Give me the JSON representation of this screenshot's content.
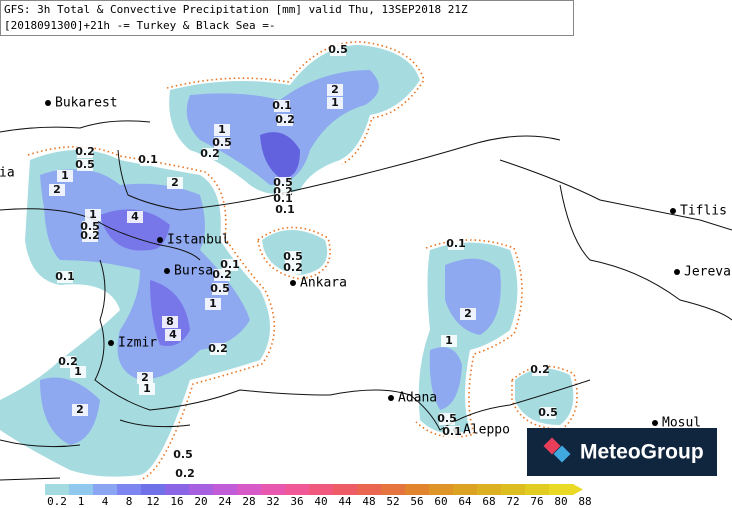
{
  "header": {
    "line1": "GFS: 3h Total & Convective Precipitation [mm] valid Thu, 13SEP2018 21Z",
    "line2": "[2018091300]+21h  -= Turkey & Black Sea =-"
  },
  "cities": [
    "Bukarest",
    "Istanbul",
    "Bursa",
    "Ankara",
    "Izmir",
    "Adana",
    "Aleppo",
    "Tiflis",
    "Jereva",
    "Mosul",
    "ia"
  ],
  "contour_labels": [
    "0.5",
    "2",
    "1",
    "0.1",
    "0.2",
    "1",
    "0.5",
    "0.2",
    "0.2",
    "0.5",
    "0.1",
    "1",
    "2",
    "2",
    "0.5",
    "0.2",
    "0.1",
    "0.1",
    "1",
    "4",
    "0.5",
    "0.2",
    "0.1",
    "0.2",
    "0.5",
    "1",
    "8",
    "4",
    "0.5",
    "0.2",
    "0.1",
    "2",
    "1",
    "0.1",
    "0.2",
    "0.2",
    "1",
    "2",
    "1",
    "2",
    "0.2",
    "0.5",
    "0.5",
    "0.1",
    "0.5",
    "0.2"
  ],
  "legend": {
    "labels": [
      "0.2",
      "1",
      "4",
      "8",
      "12",
      "16",
      "20",
      "24",
      "28",
      "32",
      "36",
      "40",
      "44",
      "48",
      "52",
      "56",
      "60",
      "64",
      "68",
      "72",
      "76",
      "80",
      "88"
    ],
    "colors": [
      "#a3dbe0",
      "#90c8ee",
      "#8aa6f2",
      "#7d86f0",
      "#7070e8",
      "#8a66e6",
      "#a660e0",
      "#c05cd8",
      "#d85ac8",
      "#e858b0",
      "#f05898",
      "#f0587e",
      "#ee5c66",
      "#ea6650",
      "#e6743e",
      "#e2842e",
      "#de9426",
      "#dca222",
      "#dcb020",
      "#dcbe20",
      "#e2cc22",
      "#eada26"
    ]
  },
  "logo": "MeteoGroup"
}
